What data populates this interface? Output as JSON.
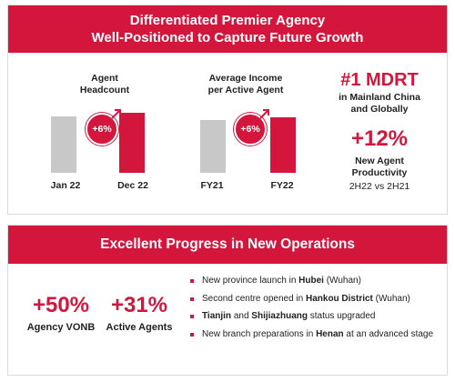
{
  "header": {
    "line1": "Differentiated Premier Agency",
    "line2": "Well-Positioned to Capture Future Growth"
  },
  "chart_data": [
    {
      "type": "bar",
      "title_line1": "Agent",
      "title_line2": "Headcount",
      "categories": [
        "Jan 22",
        "Dec 22"
      ],
      "values": [
        100,
        106
      ],
      "annotation": "+6%",
      "colors": [
        "#c8c8c8",
        "#d4163c"
      ]
    },
    {
      "type": "bar",
      "title_line1": "Average Income",
      "title_line2": "per Active Agent",
      "categories": [
        "FY21",
        "FY22"
      ],
      "values": [
        100,
        106
      ],
      "annotation": "+6%",
      "colors": [
        "#c8c8c8",
        "#d4163c"
      ]
    }
  ],
  "highlights": {
    "mdrt_title": "#1 MDRT",
    "mdrt_sub1": "in Mainland China",
    "mdrt_sub2": "and Globally",
    "productivity_value": "+12%",
    "productivity_label1": "New Agent",
    "productivity_label2": "Productivity",
    "productivity_period": "2H22 vs 2H21"
  },
  "new_operations": {
    "title": "Excellent Progress in New Operations",
    "metrics": [
      {
        "value": "+50%",
        "label": "Agency VONB"
      },
      {
        "value": "+31%",
        "label": "Active Agents"
      }
    ],
    "bullets": [
      {
        "pre": "New province launch in ",
        "bold": "Hubei",
        "post": " (Wuhan)"
      },
      {
        "pre": "Second centre opened in ",
        "bold": "Hankou District",
        "post": " (Wuhan)"
      },
      {
        "bold": "Tianjin",
        "mid": " and ",
        "bold2": "Shijiazhuang",
        "post": " status upgraded"
      },
      {
        "pre": "New branch preparations in ",
        "bold": "Henan",
        "post": " at an advanced stage"
      }
    ]
  },
  "colors": {
    "accent": "#d4163c",
    "neutral_bar": "#c8c8c8",
    "border": "#d9dadc"
  }
}
